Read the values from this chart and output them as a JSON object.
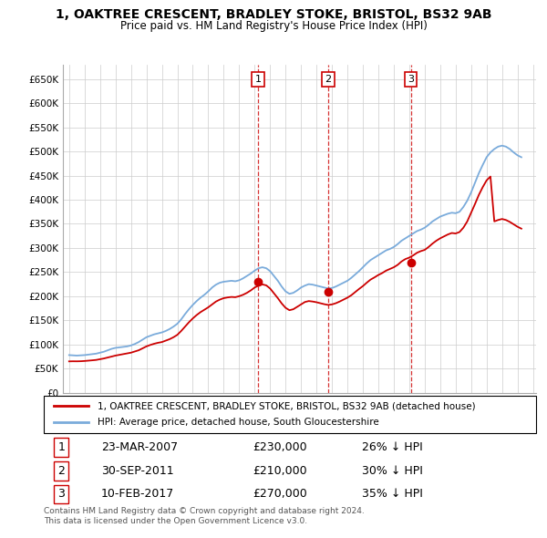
{
  "title": "1, OAKTREE CRESCENT, BRADLEY STOKE, BRISTOL, BS32 9AB",
  "subtitle": "Price paid vs. HM Land Registry's House Price Index (HPI)",
  "ylim": [
    0,
    680000
  ],
  "yticks": [
    0,
    50000,
    100000,
    150000,
    200000,
    250000,
    300000,
    350000,
    400000,
    450000,
    500000,
    550000,
    600000,
    650000
  ],
  "ytick_labels": [
    "£0",
    "£50K",
    "£100K",
    "£150K",
    "£200K",
    "£250K",
    "£300K",
    "£350K",
    "£400K",
    "£450K",
    "£500K",
    "£550K",
    "£600K",
    "£650K"
  ],
  "background_color": "#ffffff",
  "grid_color": "#cccccc",
  "sale_color": "#cc0000",
  "hpi_color": "#7aabdb",
  "transactions": [
    {
      "label": "1",
      "date_num": 2007.22,
      "price": 230000
    },
    {
      "label": "2",
      "date_num": 2011.75,
      "price": 210000
    },
    {
      "label": "3",
      "date_num": 2017.11,
      "price": 270000
    }
  ],
  "legend_sale_label": "1, OAKTREE CRESCENT, BRADLEY STOKE, BRISTOL, BS32 9AB (detached house)",
  "legend_hpi_label": "HPI: Average price, detached house, South Gloucestershire",
  "table_rows": [
    {
      "num": "1",
      "date": "23-MAR-2007",
      "price": "£230,000",
      "note": "26% ↓ HPI"
    },
    {
      "num": "2",
      "date": "30-SEP-2011",
      "price": "£210,000",
      "note": "30% ↓ HPI"
    },
    {
      "num": "3",
      "date": "10-FEB-2017",
      "price": "£270,000",
      "note": "35% ↓ HPI"
    }
  ],
  "footnote": "Contains HM Land Registry data © Crown copyright and database right 2024.\nThis data is licensed under the Open Government Licence v3.0.",
  "hpi_data": {
    "years": [
      1995,
      1995.25,
      1995.5,
      1995.75,
      1996,
      1996.25,
      1996.5,
      1996.75,
      1997,
      1997.25,
      1997.5,
      1997.75,
      1998,
      1998.25,
      1998.5,
      1998.75,
      1999,
      1999.25,
      1999.5,
      1999.75,
      2000,
      2000.25,
      2000.5,
      2000.75,
      2001,
      2001.25,
      2001.5,
      2001.75,
      2002,
      2002.25,
      2002.5,
      2002.75,
      2003,
      2003.25,
      2003.5,
      2003.75,
      2004,
      2004.25,
      2004.5,
      2004.75,
      2005,
      2005.25,
      2005.5,
      2005.75,
      2006,
      2006.25,
      2006.5,
      2006.75,
      2007,
      2007.25,
      2007.5,
      2007.75,
      2008,
      2008.25,
      2008.5,
      2008.75,
      2009,
      2009.25,
      2009.5,
      2009.75,
      2010,
      2010.25,
      2010.5,
      2010.75,
      2011,
      2011.25,
      2011.5,
      2011.75,
      2012,
      2012.25,
      2012.5,
      2012.75,
      2013,
      2013.25,
      2013.5,
      2013.75,
      2014,
      2014.25,
      2014.5,
      2014.75,
      2015,
      2015.25,
      2015.5,
      2015.75,
      2016,
      2016.25,
      2016.5,
      2016.75,
      2017,
      2017.25,
      2017.5,
      2017.75,
      2018,
      2018.25,
      2018.5,
      2018.75,
      2019,
      2019.25,
      2019.5,
      2019.75,
      2020,
      2020.25,
      2020.5,
      2020.75,
      2021,
      2021.25,
      2021.5,
      2021.75,
      2022,
      2022.25,
      2022.5,
      2022.75,
      2023,
      2023.25,
      2023.5,
      2023.75,
      2024,
      2024.25
    ],
    "values": [
      78000,
      77500,
      77000,
      77500,
      78000,
      79000,
      80000,
      81000,
      83000,
      85000,
      88000,
      91000,
      93000,
      94000,
      95000,
      96000,
      98000,
      101000,
      105000,
      110000,
      115000,
      118000,
      121000,
      123000,
      125000,
      128000,
      132000,
      137000,
      143000,
      152000,
      163000,
      173000,
      182000,
      190000,
      197000,
      203000,
      210000,
      218000,
      224000,
      228000,
      230000,
      231000,
      232000,
      231000,
      233000,
      237000,
      242000,
      247000,
      253000,
      258000,
      260000,
      258000,
      252000,
      242000,
      232000,
      220000,
      210000,
      205000,
      207000,
      212000,
      218000,
      222000,
      225000,
      224000,
      222000,
      220000,
      218000,
      216000,
      217000,
      220000,
      224000,
      228000,
      232000,
      238000,
      245000,
      252000,
      260000,
      268000,
      275000,
      280000,
      285000,
      290000,
      295000,
      298000,
      302000,
      308000,
      315000,
      320000,
      325000,
      330000,
      335000,
      338000,
      342000,
      348000,
      355000,
      360000,
      365000,
      368000,
      371000,
      373000,
      372000,
      375000,
      385000,
      398000,
      415000,
      435000,
      455000,
      472000,
      488000,
      498000,
      505000,
      510000,
      512000,
      510000,
      505000,
      498000,
      492000,
      488000
    ]
  },
  "sale_data": {
    "years": [
      1995,
      1995.25,
      1995.5,
      1995.75,
      1996,
      1996.25,
      1996.5,
      1996.75,
      1997,
      1997.25,
      1997.5,
      1997.75,
      1998,
      1998.25,
      1998.5,
      1998.75,
      1999,
      1999.25,
      1999.5,
      1999.75,
      2000,
      2000.25,
      2000.5,
      2000.75,
      2001,
      2001.25,
      2001.5,
      2001.75,
      2002,
      2002.25,
      2002.5,
      2002.75,
      2003,
      2003.25,
      2003.5,
      2003.75,
      2004,
      2004.25,
      2004.5,
      2004.75,
      2005,
      2005.25,
      2005.5,
      2005.75,
      2006,
      2006.25,
      2006.5,
      2006.75,
      2007,
      2007.25,
      2007.5,
      2007.75,
      2008,
      2008.25,
      2008.5,
      2008.75,
      2009,
      2009.25,
      2009.5,
      2009.75,
      2010,
      2010.25,
      2010.5,
      2010.75,
      2011,
      2011.25,
      2011.5,
      2011.75,
      2012,
      2012.25,
      2012.5,
      2012.75,
      2013,
      2013.25,
      2013.5,
      2013.75,
      2014,
      2014.25,
      2014.5,
      2014.75,
      2015,
      2015.25,
      2015.5,
      2015.75,
      2016,
      2016.25,
      2016.5,
      2016.75,
      2017,
      2017.25,
      2017.5,
      2017.75,
      2018,
      2018.25,
      2018.5,
      2018.75,
      2019,
      2019.25,
      2019.5,
      2019.75,
      2020,
      2020.25,
      2020.5,
      2020.75,
      2021,
      2021.25,
      2021.5,
      2021.75,
      2022,
      2022.25,
      2022.5,
      2022.75,
      2023,
      2023.25,
      2023.5,
      2023.75,
      2024,
      2024.25
    ],
    "values": [
      65000,
      65200,
      65100,
      65300,
      65800,
      66500,
      67200,
      68000,
      69500,
      71000,
      73000,
      75000,
      77000,
      78500,
      80000,
      81500,
      83000,
      85500,
      88000,
      92000,
      96000,
      99000,
      101500,
      103500,
      105000,
      108000,
      111000,
      115000,
      120000,
      128000,
      137000,
      146000,
      154000,
      161000,
      167000,
      172000,
      177000,
      183000,
      189000,
      193000,
      196000,
      197500,
      198500,
      198000,
      200000,
      203000,
      207000,
      212000,
      218000,
      222000,
      224500,
      222500,
      216000,
      206000,
      196000,
      185000,
      176000,
      171000,
      173000,
      178000,
      183000,
      188000,
      190000,
      189000,
      187500,
      185500,
      183500,
      182000,
      183000,
      185500,
      189000,
      193000,
      197000,
      202000,
      208500,
      215000,
      221000,
      228000,
      234500,
      239000,
      244000,
      248000,
      253000,
      256500,
      260000,
      265000,
      272000,
      277000,
      280000,
      284500,
      290000,
      293500,
      296000,
      302000,
      309000,
      315000,
      320000,
      324000,
      328000,
      331000,
      330000,
      333000,
      342000,
      355000,
      373000,
      391000,
      410000,
      426000,
      440000,
      448000,
      355000,
      358000,
      360000,
      358000,
      354000,
      349000,
      344000,
      340000
    ]
  }
}
